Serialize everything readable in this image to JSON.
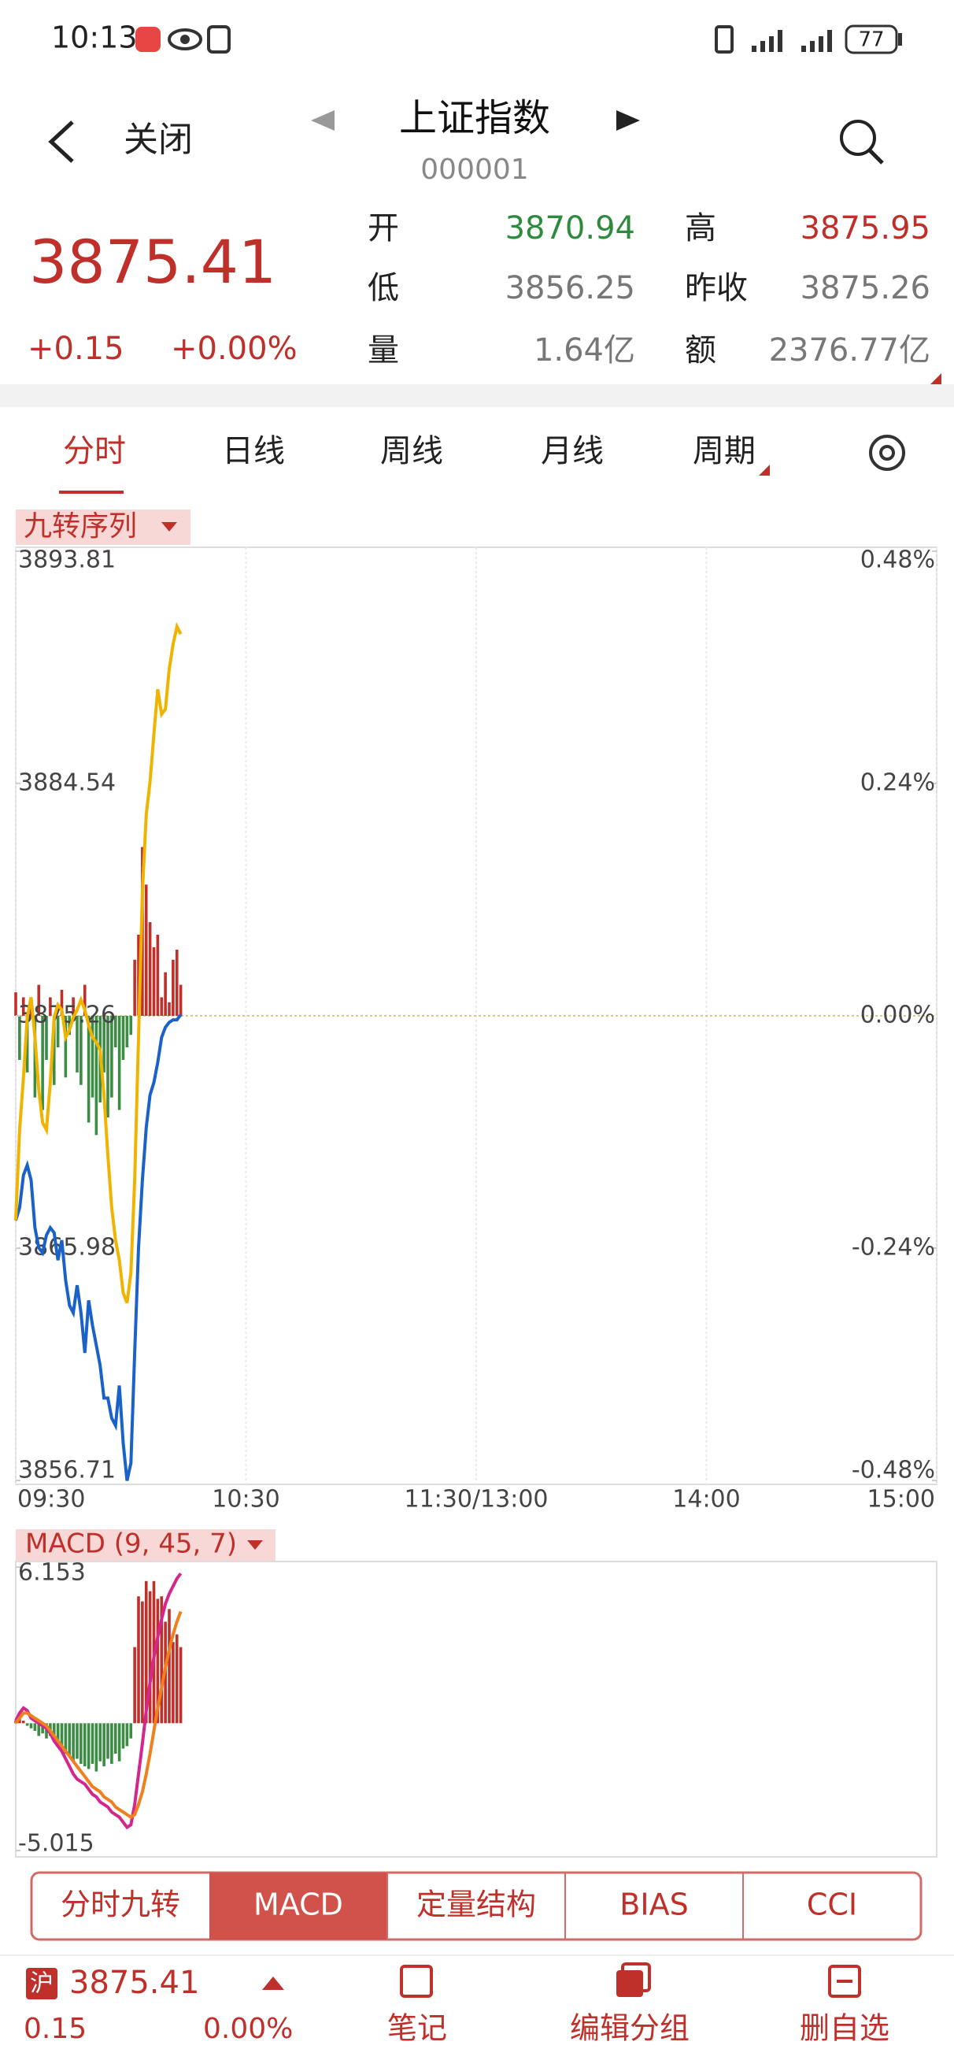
{
  "status_bar": {
    "time": "10:13",
    "battery": "77"
  },
  "header": {
    "close": "关闭",
    "title": "上证指数",
    "code": "000001"
  },
  "quote": {
    "price": "3875.41",
    "change": "+0.15",
    "change_pct": "+0.00%",
    "fields": [
      {
        "label": "开",
        "value": "3870.94",
        "color": "#2e8b3e"
      },
      {
        "label": "高",
        "value": "3875.95",
        "color": "#c0302a"
      },
      {
        "label": "低",
        "value": "3856.25",
        "color": "#777777"
      },
      {
        "label": "昨收",
        "value": "3875.26",
        "color": "#777777"
      },
      {
        "label": "量",
        "value": "1.64亿",
        "color": "#777777"
      },
      {
        "label": "额",
        "value": "2376.77亿",
        "color": "#777777"
      }
    ]
  },
  "tabs": [
    "分时",
    "日线",
    "周线",
    "月线",
    "周期"
  ],
  "indicator_label": "九转序列",
  "chart_data": [
    {
      "type": "line",
      "xlim": [
        0,
        240
      ],
      "xticks": [
        {
          "value": 0,
          "label": "09:30"
        },
        {
          "value": 60,
          "label": "10:30"
        },
        {
          "value": 120,
          "label": "11:30/13:00"
        },
        {
          "value": 180,
          "label": "14:00"
        },
        {
          "value": 240,
          "label": "15:00"
        }
      ],
      "ylim": [
        3856.71,
        3893.81
      ],
      "yticks": [
        3893.81,
        3884.54,
        3875.26,
        3865.98,
        3856.71
      ],
      "y2lim": [
        -0.48,
        0.48
      ],
      "y2ticks": [
        {
          "value": 0.48,
          "label": "0.48%"
        },
        {
          "value": 0.24,
          "label": "0.24%"
        },
        {
          "value": 0,
          "label": "0.00%"
        },
        {
          "value": -0.24,
          "label": "-0.24%"
        },
        {
          "value": -0.48,
          "label": "-0.48%"
        }
      ],
      "series": [
        {
          "color": "#1a62c9",
          "values": [
            3867.09,
            3867.6,
            3868.9,
            3869.3,
            3868.7,
            3866.8,
            3866.0,
            3865.8,
            3866.5,
            3866.8,
            3866.6,
            3865.5,
            3866.3,
            3864.7,
            3863.7,
            3863.4,
            3864.5,
            3863.4,
            3861.8,
            3863.9,
            3862.9,
            3862.1,
            3861.3,
            3860.0,
            3860.0,
            3859.2,
            3858.9,
            3860.5,
            3858.2,
            3856.7,
            3857.4,
            3861.8,
            3866.0,
            3868.7,
            3870.8,
            3872.1,
            3872.6,
            3873.4,
            3874.4,
            3874.8,
            3875.0,
            3875.1,
            3875.1,
            3875.3
          ]
        },
        {
          "color": "#f0b400",
          "values": [
            3867.1,
            3870.7,
            3872.8,
            3875.2,
            3876.0,
            3874.4,
            3872.3,
            3871.0,
            3870.7,
            3872.6,
            3875.2,
            3875.7,
            3875.5,
            3874.4,
            3874.7,
            3875.2,
            3875.5,
            3875.9,
            3875.5,
            3874.9,
            3874.4,
            3874.2,
            3873.9,
            3872.1,
            3869.7,
            3867.6,
            3866.3,
            3865.5,
            3864.2,
            3863.8,
            3865.0,
            3868.7,
            3874.4,
            3880.2,
            3883.3,
            3884.6,
            3886.5,
            3888.3,
            3887.3,
            3887.5,
            3889.1,
            3890.1,
            3890.8,
            3890.5
          ]
        }
      ],
      "bars": {
        "up_color": "#c0302a",
        "down_color": "#3c8c45",
        "values": [
          3876.2,
          3873.5,
          3876.0,
          3873.0,
          3875.9,
          3872.0,
          3876.5,
          3871.5,
          3873.5,
          3876.0,
          3872.5,
          3874.0,
          3876.3,
          3872.8,
          3874.5,
          3876.0,
          3873.0,
          3872.5,
          3876.5,
          3871.0,
          3872.0,
          3870.5,
          3871.8,
          3873.0,
          3871.2,
          3872.0,
          3874.0,
          3871.5,
          3873.5,
          3874.0,
          3874.5,
          3877.5,
          3878.5,
          3882.0,
          3880.5,
          3879.0,
          3878.0,
          3878.5,
          3876.0,
          3877.0,
          3875.8,
          3877.5,
          3877.9,
          3876.5
        ]
      }
    },
    {
      "type": "macd",
      "title": "MACD (9, 45, 7)",
      "xlim": [
        0,
        240
      ],
      "ylim": [
        -5.015,
        6.153
      ],
      "yticks": [
        6.153,
        -5.015
      ],
      "bars": {
        "up_color": "#c0302a",
        "down_color": "#3c8c45",
        "values": [
          0.1,
          0.2,
          0.1,
          -0.1,
          -0.2,
          -0.3,
          -0.5,
          -0.4,
          -0.6,
          -0.5,
          -0.7,
          -0.9,
          -1.0,
          -1.2,
          -1.3,
          -1.5,
          -1.4,
          -1.6,
          -1.7,
          -1.8,
          -1.6,
          -1.9,
          -1.5,
          -1.7,
          -1.4,
          -1.6,
          -1.2,
          -1.5,
          -1.0,
          -0.9,
          -0.6,
          3.0,
          5.0,
          4.8,
          5.6,
          5.2,
          5.6,
          4.9,
          5.0,
          4.0,
          4.5,
          3.2,
          3.5,
          3.0
        ]
      },
      "series": [
        {
          "color": "#d4268f",
          "values": [
            0.1,
            0.4,
            0.6,
            0.5,
            0.2,
            0.1,
            0.0,
            -0.1,
            -0.2,
            -0.4,
            -0.7,
            -0.9,
            -1.1,
            -1.4,
            -1.7,
            -2.0,
            -2.2,
            -2.3,
            -2.4,
            -2.6,
            -2.8,
            -2.9,
            -3.1,
            -3.2,
            -3.3,
            -3.5,
            -3.6,
            -3.7,
            -3.9,
            -4.1,
            -4.0,
            -3.2,
            -2.0,
            -0.8,
            0.5,
            1.6,
            2.6,
            3.4,
            4.1,
            4.7,
            5.1,
            5.4,
            5.7,
            5.9
          ]
        },
        {
          "color": "#f07f1e",
          "values": [
            0.0,
            0.2,
            0.4,
            0.4,
            0.3,
            0.2,
            0.1,
            0.0,
            -0.1,
            -0.3,
            -0.5,
            -0.7,
            -0.9,
            -1.1,
            -1.3,
            -1.5,
            -1.7,
            -1.9,
            -2.1,
            -2.3,
            -2.5,
            -2.6,
            -2.7,
            -2.9,
            -3.0,
            -3.1,
            -3.3,
            -3.4,
            -3.5,
            -3.6,
            -3.7,
            -3.6,
            -3.2,
            -2.7,
            -2.0,
            -1.2,
            -0.3,
            0.6,
            1.4,
            2.2,
            2.9,
            3.5,
            4.0,
            4.4
          ]
        }
      ]
    }
  ],
  "bottom_tabs": {
    "items": [
      "分时九转",
      "MACD",
      "定量结构",
      "BIAS",
      "CCI"
    ],
    "active": 1
  },
  "footer": {
    "market": "沪",
    "price": "3875.41",
    "change": "0.15",
    "change_pct": "0.00%",
    "actions": [
      "笔记",
      "编辑分组",
      "删自选"
    ]
  }
}
